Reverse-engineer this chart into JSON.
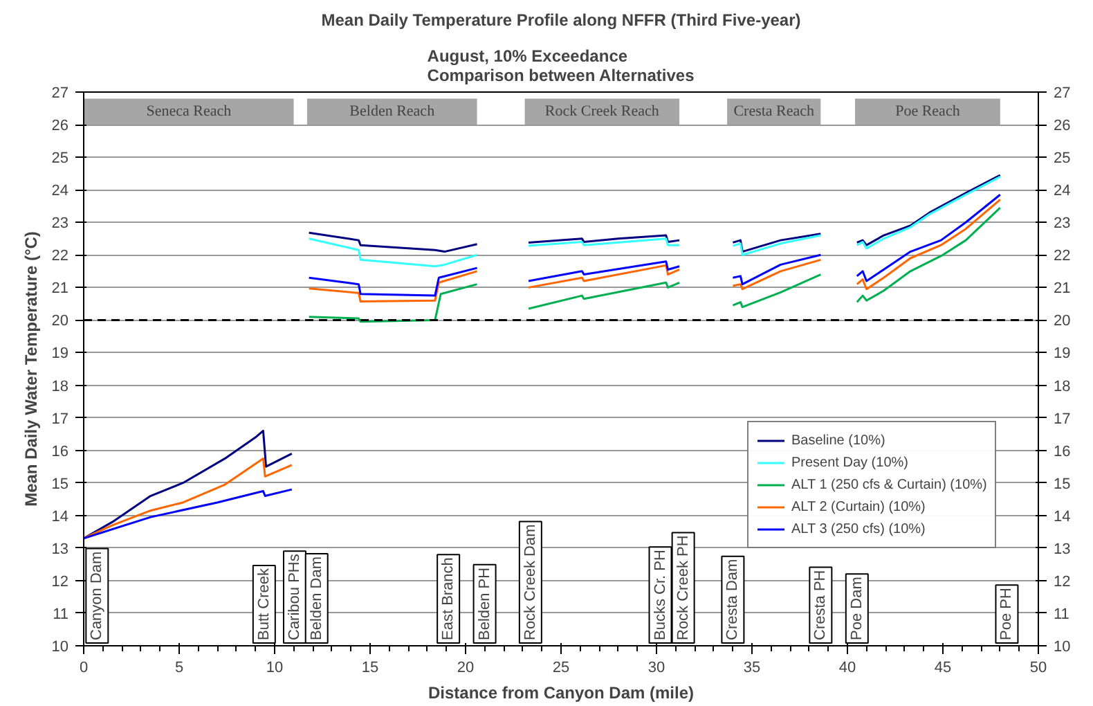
{
  "chart_data": {
    "type": "line",
    "title": "Mean Daily Temperature Profile along NFFR (Third Five-year)",
    "subtitle": "August, 10% Exceedance\nComparison between Alternatives",
    "xlabel": "Distance from Canyon Dam (mile)",
    "ylabel": "Mean Daily Water Temperature (°C)",
    "xlim": [
      0,
      50
    ],
    "xticks": [
      0,
      5,
      10,
      15,
      20,
      25,
      30,
      35,
      40,
      45,
      50
    ],
    "ylim": [
      10,
      27
    ],
    "yticks": [
      10,
      11,
      12,
      13,
      14,
      15,
      16,
      17,
      18,
      19,
      20,
      21,
      22,
      23,
      24,
      25,
      26,
      27
    ],
    "y2lim": [
      10,
      27
    ],
    "y2ticks": [
      10,
      11,
      12,
      13,
      14,
      15,
      16,
      17,
      18,
      19,
      20,
      21,
      22,
      23,
      24,
      25,
      26,
      27
    ],
    "grid": "y",
    "legend": "right",
    "marker": "none",
    "line_style": "solid",
    "series": [
      {
        "name": "Baseline (10%)",
        "color": "#000080",
        "x": [
          0,
          1.5,
          3.5,
          5.2,
          7.4,
          9.0,
          9.4,
          9.55,
          10.9,
          11.3,
          11.8,
          14.4,
          14.5,
          18.4,
          18.9,
          20.6,
          22,
          23.3,
          26.1,
          26.2,
          28,
          30.5,
          30.6,
          31.2,
          32.5,
          34.0,
          34.4,
          34.5,
          36.5,
          38.6,
          39.5,
          40.5,
          40.8,
          41.0,
          41.9,
          43.3,
          44.3,
          46.2,
          48.0
        ],
        "values": [
          13.3,
          13.8,
          14.6,
          15.0,
          15.75,
          16.4,
          16.6,
          15.5,
          15.9,
          null,
          22.68,
          22.45,
          22.3,
          22.15,
          22.1,
          22.33,
          null,
          22.38,
          22.5,
          22.4,
          22.5,
          22.6,
          22.4,
          22.45,
          null,
          22.38,
          22.45,
          22.1,
          22.45,
          22.65,
          null,
          22.38,
          22.45,
          22.3,
          22.6,
          22.9,
          23.3,
          23.9,
          24.45
        ]
      },
      {
        "name": "Present Day (10%)",
        "color": "#33ffff",
        "x": [
          11.8,
          14.4,
          14.5,
          18.4,
          18.9,
          20.6,
          22,
          23.3,
          26.1,
          26.2,
          30.5,
          30.6,
          31.2,
          32.5,
          34.0,
          34.4,
          34.5,
          36.5,
          38.6,
          39.5,
          40.5,
          40.8,
          41.0,
          41.9,
          43.3,
          44.3,
          46.2,
          48.0
        ],
        "values": [
          22.5,
          22.15,
          21.85,
          21.65,
          21.7,
          22.0,
          null,
          22.28,
          22.4,
          22.3,
          22.5,
          22.3,
          22.3,
          null,
          22.28,
          22.35,
          22.0,
          22.35,
          22.6,
          null,
          22.3,
          22.4,
          22.2,
          22.5,
          22.85,
          23.25,
          23.85,
          24.4
        ]
      },
      {
        "name": "ALT 1 (250 cfs & Curtain) (10%)",
        "color": "#00b050",
        "x": [
          11.8,
          14.4,
          14.5,
          18.4,
          18.7,
          20.6,
          22,
          23.3,
          26.1,
          26.2,
          30.5,
          30.6,
          31.2,
          32.5,
          34.0,
          34.4,
          34.5,
          36.5,
          38.6,
          39.5,
          40.5,
          40.8,
          41.0,
          41.9,
          43.3,
          45.0,
          46.2,
          48.0
        ],
        "values": [
          20.1,
          20.05,
          19.95,
          20.0,
          20.8,
          21.1,
          null,
          20.35,
          20.75,
          20.65,
          21.15,
          21.0,
          21.15,
          null,
          20.45,
          20.55,
          20.4,
          20.85,
          21.4,
          null,
          20.55,
          20.75,
          20.6,
          20.9,
          21.5,
          22.0,
          22.45,
          23.45
        ]
      },
      {
        "name": "ALT 2 (Curtain) (10%)",
        "color": "#ff6600",
        "x": [
          0,
          1.5,
          3.5,
          5.2,
          7.4,
          9.4,
          9.5,
          10.9,
          11.3,
          11.8,
          14.4,
          14.5,
          18.4,
          18.6,
          20.6,
          22,
          23.3,
          26.1,
          26.2,
          30.5,
          30.6,
          31.2,
          32.5,
          34.0,
          34.4,
          34.5,
          36.5,
          38.6,
          39.5,
          40.5,
          40.8,
          41.0,
          41.9,
          43.3,
          44.9,
          46.2,
          48.0
        ],
        "values": [
          13.3,
          13.7,
          14.15,
          14.4,
          14.95,
          15.75,
          15.2,
          15.55,
          null,
          20.97,
          20.83,
          20.57,
          20.6,
          21.15,
          21.5,
          null,
          21.0,
          21.3,
          21.2,
          21.68,
          21.4,
          21.55,
          null,
          21.05,
          21.1,
          20.95,
          21.5,
          21.85,
          null,
          21.1,
          21.25,
          20.95,
          21.3,
          21.9,
          22.3,
          22.8,
          23.7
        ]
      },
      {
        "name": "ALT 3 (250 cfs) (10%)",
        "color": "#0000ff",
        "x": [
          0,
          3.5,
          7.0,
          9.4,
          9.5,
          10.9,
          11.3,
          11.8,
          14.4,
          14.5,
          18.4,
          18.6,
          20.6,
          22,
          23.3,
          26.1,
          26.2,
          30.5,
          30.6,
          31.2,
          32.5,
          34.0,
          34.4,
          34.5,
          36.5,
          38.6,
          39.5,
          40.5,
          40.8,
          41.0,
          41.9,
          43.3,
          44.9,
          46.2,
          48.0
        ],
        "values": [
          13.3,
          13.95,
          14.4,
          14.75,
          14.6,
          14.8,
          null,
          21.3,
          21.1,
          20.8,
          20.75,
          21.3,
          21.6,
          null,
          21.2,
          21.5,
          21.4,
          21.8,
          21.55,
          21.65,
          null,
          21.3,
          21.35,
          21.1,
          21.7,
          22.0,
          null,
          21.35,
          21.5,
          21.2,
          21.55,
          22.1,
          22.45,
          23.0,
          23.85
        ]
      }
    ],
    "ref_lines": [
      {
        "axis": "y",
        "value": 20,
        "color": "#000000",
        "line_style": "dashed"
      }
    ],
    "bands": [
      {
        "axis": "x",
        "from": 0,
        "to": 11.0,
        "label": "Seneca Reach",
        "color": "#a6a6a6"
      },
      {
        "axis": "x",
        "from": 11.7,
        "to": 20.6,
        "label": "Belden Reach",
        "color": "#a6a6a6"
      },
      {
        "axis": "x",
        "from": 23.1,
        "to": 31.2,
        "label": "Rock Creek Reach",
        "color": "#a6a6a6"
      },
      {
        "axis": "x",
        "from": 33.7,
        "to": 38.6,
        "label": "Cresta Reach",
        "color": "#a6a6a6"
      },
      {
        "axis": "x",
        "from": 40.4,
        "to": 48.0,
        "label": "Poe Reach",
        "color": "#a6a6a6"
      }
    ],
    "annotations": [
      "Canyon Dam",
      "Butt Creek",
      "Caribou PHs",
      "Belden Dam",
      "East Branch",
      "Belden PH",
      "Rock Creek Dam",
      "Bucks Cr. PH",
      "Rock Creek PH",
      "Cresta Dam",
      "Cresta PH",
      "Poe Dam",
      "Poe PH"
    ]
  }
}
